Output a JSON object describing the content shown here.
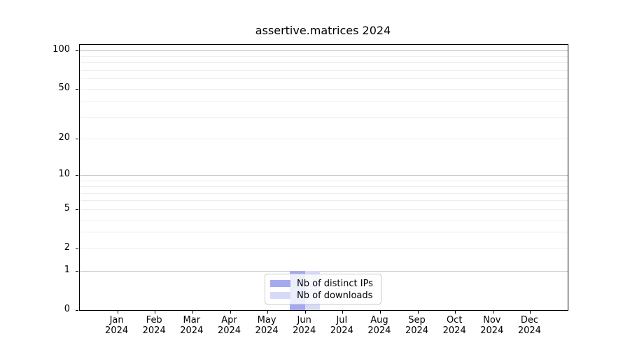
{
  "title": "assertive.matrices 2024",
  "chart_data": {
    "type": "bar",
    "title": "assertive.matrices 2024",
    "x_categories": [
      "Jan 2024",
      "Feb 2024",
      "Mar 2024",
      "Apr 2024",
      "May 2024",
      "Jun 2024",
      "Jul 2024",
      "Aug 2024",
      "Sep 2024",
      "Oct 2024",
      "Nov 2024",
      "Dec 2024"
    ],
    "x_tick_line1": [
      "Jan",
      "Feb",
      "Mar",
      "Apr",
      "May",
      "Jun",
      "Jul",
      "Aug",
      "Sep",
      "Oct",
      "Nov",
      "Dec"
    ],
    "x_tick_line2": "2024",
    "series": [
      {
        "name": "Nb of distinct IPs",
        "color": "#a5aaee",
        "values": [
          0,
          0,
          0,
          0,
          0,
          1,
          0,
          0,
          0,
          0,
          0,
          0
        ]
      },
      {
        "name": "Nb of downloads",
        "color": "#d7daf7",
        "values": [
          0,
          0,
          0,
          0,
          0,
          1,
          0,
          0,
          0,
          0,
          0,
          0
        ]
      }
    ],
    "xlabel": "",
    "ylabel": "",
    "yscale": "log1p",
    "ylim": [
      0,
      110
    ],
    "ytick_values": [
      100,
      50,
      20,
      10,
      5,
      2,
      1,
      0
    ],
    "ytick_labels": [
      "100",
      "50",
      "20",
      "10",
      "5",
      "2",
      "1",
      "0"
    ],
    "major_grid_values": [
      1,
      10,
      100
    ],
    "minor_grid_values": [
      2,
      3,
      4,
      5,
      6,
      7,
      8,
      9,
      20,
      30,
      40,
      50,
      60,
      70,
      80,
      90
    ],
    "grid": true,
    "legend_position": "lower center"
  },
  "colors": {
    "background": "#ffffff",
    "axis": "#000000",
    "major_grid": "#c6c6c6",
    "minor_grid": "#ededed",
    "legend_border": "#cccccc",
    "text": "#000000"
  }
}
